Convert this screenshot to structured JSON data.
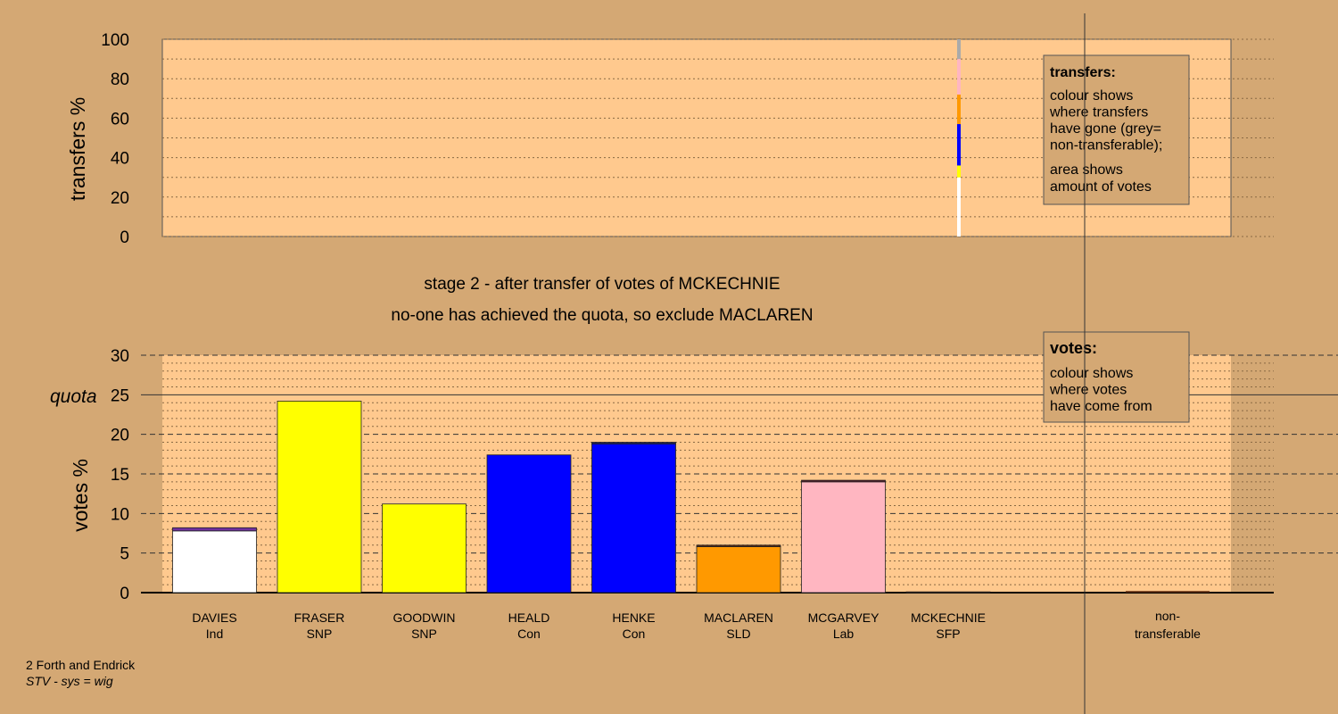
{
  "chart_data": [
    {
      "type": "bar",
      "chart": "transfers",
      "ylabel": "transfers %",
      "ylim": [
        0,
        100
      ],
      "yticks": [
        0,
        20,
        40,
        60,
        80,
        100
      ],
      "grid": true,
      "transfer_column": "MCKECHNIE",
      "transfer_segments": [
        {
          "label": "MACLAREN",
          "bottom": 0,
          "top": 30,
          "color": "#ffffff"
        },
        {
          "label": "FRASER",
          "bottom": 30,
          "top": 36,
          "color": "#ffff00"
        },
        {
          "label": "HEALD",
          "bottom": 36,
          "top": 57,
          "color": "#0000ff"
        },
        {
          "label": "MACLAREN",
          "bottom": 57,
          "top": 72,
          "color": "#ff9900"
        },
        {
          "label": "MCGARVEY",
          "bottom": 72,
          "top": 90,
          "color": "#ffb6c1"
        },
        {
          "label": "non-transferable",
          "bottom": 90,
          "top": 100,
          "color": "#aaaaaa"
        }
      ],
      "legend": {
        "title": "transfers:",
        "lines1": [
          "colour shows",
          "where transfers",
          "have gone (grey=",
          "non-transferable);"
        ],
        "lines2": [
          "area shows",
          "amount of votes"
        ]
      }
    },
    {
      "type": "bar",
      "chart": "votes",
      "ylabel": "votes %",
      "ylim": [
        0,
        30
      ],
      "yticks": [
        0,
        5,
        10,
        15,
        20,
        25,
        30
      ],
      "grid": true,
      "quota": 25,
      "quota_label": "quota",
      "categories": [
        {
          "name": "DAVIES",
          "party": "Ind"
        },
        {
          "name": "FRASER",
          "party": "SNP"
        },
        {
          "name": "GOODWIN",
          "party": "SNP"
        },
        {
          "name": "HEALD",
          "party": "Con"
        },
        {
          "name": "HENKE",
          "party": "Con"
        },
        {
          "name": "MACLAREN",
          "party": "SLD"
        },
        {
          "name": "MCGARVEY",
          "party": "Lab"
        },
        {
          "name": "MCKECHNIE",
          "party": "SFP"
        }
      ],
      "bars": [
        {
          "segments": [
            {
              "value": 7.8,
              "color": "#ffffff"
            },
            {
              "value": 0.4,
              "color": "#7030a0"
            }
          ]
        },
        {
          "segments": [
            {
              "value": 24.2,
              "color": "#ffff00"
            }
          ]
        },
        {
          "segments": [
            {
              "value": 11.2,
              "color": "#ffff00"
            }
          ]
        },
        {
          "segments": [
            {
              "value": 17.4,
              "color": "#0000ff"
            }
          ]
        },
        {
          "segments": [
            {
              "value": 18.8,
              "color": "#0000ff"
            },
            {
              "value": 0.2,
              "color": "#1a1a60"
            }
          ]
        },
        {
          "segments": [
            {
              "value": 5.8,
              "color": "#ff9900"
            },
            {
              "value": 0.2,
              "color": "#5a2a10"
            }
          ]
        },
        {
          "segments": [
            {
              "value": 14.0,
              "color": "#ffb6c1"
            },
            {
              "value": 0.2,
              "color": "#5a1a2a"
            }
          ]
        },
        {
          "segments": [
            {
              "value": 0.1,
              "color": "#5a2a10"
            }
          ]
        }
      ],
      "nontransferable": {
        "label_line1": "non-",
        "label_line2": "transferable",
        "value": 0.2,
        "color": "#5a2a10"
      },
      "legend": {
        "title": "votes:",
        "lines": [
          "colour shows",
          "where votes",
          "have come from"
        ]
      }
    }
  ],
  "stage": {
    "line1": "stage 2 - after transfer of votes of MCKECHNIE",
    "line2": "no-one has achieved the quota, so exclude MACLAREN"
  },
  "footer": {
    "line1": "2 Forth and Endrick",
    "line2": "STV - sys = wig"
  }
}
